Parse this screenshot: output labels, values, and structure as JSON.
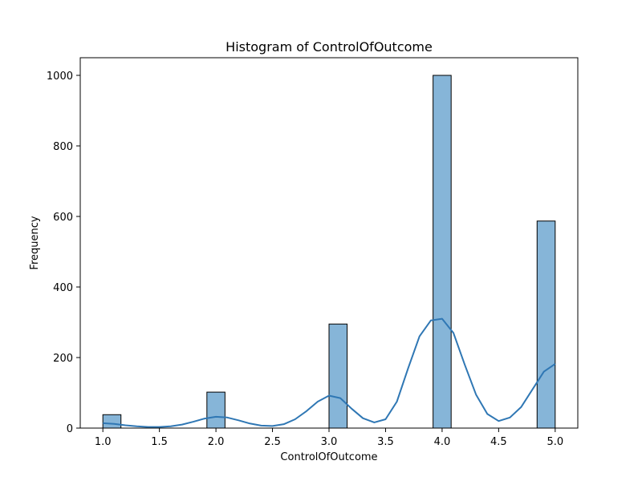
{
  "chart_data": {
    "type": "bar",
    "title": "Histogram of ControlOfOutcome",
    "xlabel": "ControlOfOutcome",
    "ylabel": "Frequency",
    "xlim": [
      0.8,
      5.2
    ],
    "ylim": [
      0,
      1050
    ],
    "xticks": [
      1.0,
      1.5,
      2.0,
      2.5,
      3.0,
      3.5,
      4.0,
      4.5,
      5.0
    ],
    "xtick_labels": [
      "1.0",
      "1.5",
      "2.0",
      "2.5",
      "3.0",
      "3.5",
      "4.0",
      "4.5",
      "5.0"
    ],
    "yticks": [
      0,
      200,
      400,
      600,
      800,
      1000
    ],
    "ytick_labels": [
      "0",
      "200",
      "400",
      "600",
      "800",
      "1000"
    ],
    "bin_width": 0.16,
    "bins": [
      {
        "x0": 1.0,
        "x1": 1.16,
        "count": 38
      },
      {
        "x0": 1.92,
        "x1": 2.08,
        "count": 102
      },
      {
        "x0": 3.0,
        "x1": 3.16,
        "count": 295
      },
      {
        "x0": 3.92,
        "x1": 4.08,
        "count": 1000
      },
      {
        "x0": 4.84,
        "x1": 5.0,
        "count": 587
      }
    ],
    "kde": {
      "x": [
        1.0,
        1.1,
        1.2,
        1.3,
        1.4,
        1.5,
        1.6,
        1.7,
        1.8,
        1.9,
        2.0,
        2.1,
        2.2,
        2.3,
        2.4,
        2.5,
        2.6,
        2.7,
        2.8,
        2.9,
        3.0,
        3.1,
        3.2,
        3.3,
        3.4,
        3.5,
        3.6,
        3.7,
        3.8,
        3.9,
        4.0,
        4.1,
        4.2,
        4.3,
        4.4,
        4.5,
        4.6,
        4.7,
        4.8,
        4.9,
        5.0
      ],
      "y": [
        14,
        12,
        8,
        5,
        3,
        3,
        5,
        10,
        18,
        27,
        32,
        30,
        22,
        13,
        7,
        6,
        11,
        25,
        48,
        75,
        92,
        85,
        55,
        28,
        16,
        25,
        75,
        170,
        260,
        305,
        310,
        270,
        180,
        95,
        40,
        20,
        30,
        60,
        110,
        160,
        182
      ]
    },
    "bar_color": "#86b5d8",
    "bar_edge_color": "#000000",
    "kde_color": "#2f77b4",
    "grid": false,
    "legend": false
  }
}
